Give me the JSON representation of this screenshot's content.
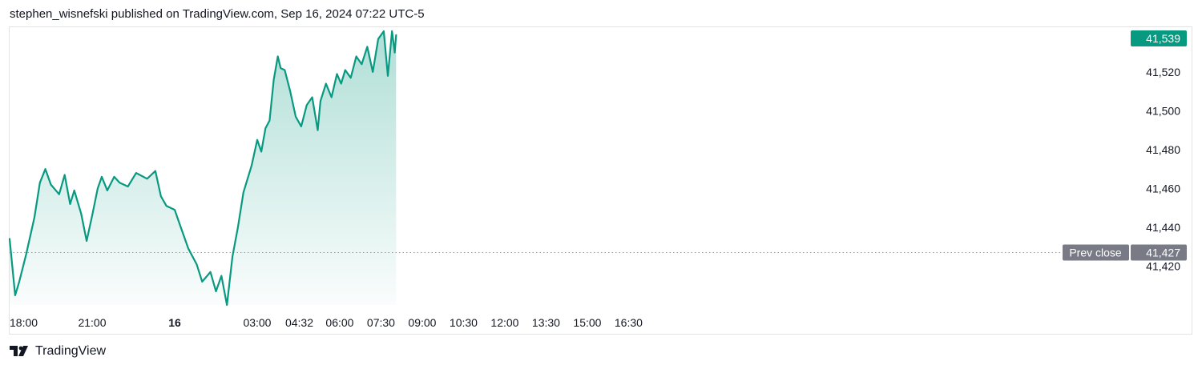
{
  "header": {
    "attribution": "stephen_wisnefski published on TradingView.com, Sep 16, 2024 07:22 UTC-5"
  },
  "footer": {
    "brand": "TradingView",
    "logo_icon": "tradingview-logo-icon"
  },
  "colors": {
    "line": "#089981",
    "fill_top": "#089981",
    "prev_close_bg": "#787b86",
    "last_price_bg": "#089981"
  },
  "chart_data": {
    "type": "area",
    "title": "",
    "ylim": [
      41400,
      41541
    ],
    "yticks": [
      41420,
      41440,
      41460,
      41480,
      41500,
      41520
    ],
    "ytick_labels": [
      "41,420",
      "41,440",
      "41,460",
      "41,480",
      "41,500",
      "41,520"
    ],
    "xtick_labels": [
      {
        "label": "18:00",
        "t": 0,
        "bold": false
      },
      {
        "label": "21:00",
        "t": 3,
        "bold": false
      },
      {
        "label": "16",
        "t": 6,
        "bold": true
      },
      {
        "label": "03:00",
        "t": 9,
        "bold": false
      },
      {
        "label": "04:32",
        "t": 10.53,
        "bold": false
      },
      {
        "label": "06:00",
        "t": 12,
        "bold": false
      },
      {
        "label": "07:30",
        "t": 13.5,
        "bold": false
      },
      {
        "label": "09:00",
        "t": 15,
        "bold": false
      },
      {
        "label": "10:30",
        "t": 16.5,
        "bold": false
      },
      {
        "label": "12:00",
        "t": 18,
        "bold": false
      },
      {
        "label": "13:30",
        "t": 19.5,
        "bold": false
      },
      {
        "label": "15:00",
        "t": 21,
        "bold": false
      },
      {
        "label": "16:30",
        "t": 22.5,
        "bold": false
      }
    ],
    "x_hours_since_1800": [
      0,
      0.2,
      0.35,
      0.6,
      0.9,
      1.1,
      1.3,
      1.5,
      1.8,
      2.0,
      2.2,
      2.35,
      2.6,
      2.8,
      3.0,
      3.2,
      3.35,
      3.55,
      3.8,
      4.0,
      4.3,
      4.6,
      5.0,
      5.3,
      5.5,
      5.7,
      6.0,
      6.2,
      6.5,
      6.8,
      7.0,
      7.3,
      7.5,
      7.7,
      7.9,
      8.1,
      8.3,
      8.5,
      8.8,
      9.0,
      9.15,
      9.3,
      9.45,
      9.6,
      9.75,
      9.85,
      10.0,
      10.2,
      10.4,
      10.6,
      10.8,
      11.0,
      11.2,
      11.3,
      11.5,
      11.7,
      11.9,
      12.05,
      12.2,
      12.4,
      12.6,
      12.8,
      13.0,
      13.2,
      13.4,
      13.6,
      13.75,
      13.9,
      14.0,
      14.05
    ],
    "series": [
      {
        "values": [
          41434,
          41405,
          41412,
          41426,
          41445,
          41463,
          41470,
          41462,
          41457,
          41467,
          41452,
          41459,
          41447,
          41433,
          41446,
          41460,
          41466,
          41459,
          41466,
          41463,
          41461,
          41468,
          41465,
          41469,
          41456,
          41451,
          41449,
          41441,
          41429,
          41421,
          41412,
          41417,
          41407,
          41415,
          41400,
          41425,
          41440,
          41458,
          41472,
          41485,
          41479,
          41491,
          41495,
          41516,
          41528,
          41522,
          41521,
          41510,
          41497,
          41492,
          41503,
          41507,
          41490,
          41505,
          41514,
          41507,
          41519,
          41514,
          41521,
          41517,
          41528,
          41524,
          41533,
          41520,
          41537,
          41541,
          41518,
          41541,
          41530,
          41539
        ]
      }
    ],
    "prev_close": {
      "label": "Prev close",
      "value": 41427,
      "value_label": "41,427"
    },
    "last_price": {
      "value": 41539,
      "value_label": "41,539"
    }
  }
}
